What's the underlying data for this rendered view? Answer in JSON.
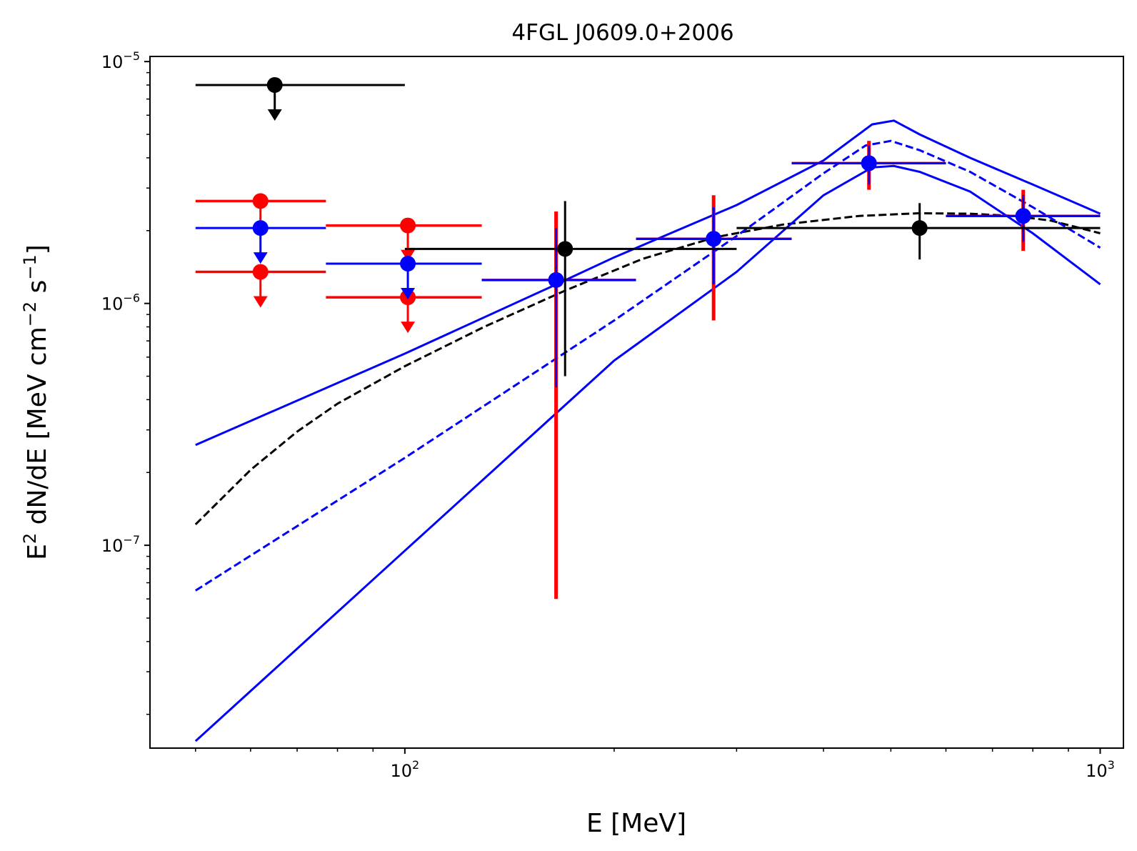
{
  "chart_data": {
    "type": "scatter",
    "title": "4FGL J0609.0+2006",
    "xlabel": "E [MeV]",
    "ylabel": {
      "prefix": "E",
      "prefix_sup": "2",
      "main": " dN/dE [MeV cm",
      "sup1": "−2",
      "mid": " s",
      "sup2": "−1",
      "suffix": "]"
    },
    "xscale": "log",
    "yscale": "log",
    "xlim": [
      43,
      1080
    ],
    "ylim": [
      1.45e-08,
      1.05e-05
    ],
    "x_ticks": [
      {
        "value": 100,
        "base": "10",
        "exp": "2"
      },
      {
        "value": 1000,
        "base": "10",
        "exp": "3"
      }
    ],
    "y_ticks": [
      {
        "value": 1e-07,
        "base": "10",
        "exp": "−7"
      },
      {
        "value": 1e-06,
        "base": "10",
        "exp": "−6"
      },
      {
        "value": 1e-05,
        "base": "10",
        "exp": "−5"
      }
    ],
    "colors": {
      "black": "#000000",
      "red": "#ff0000",
      "blue": "#0000ff"
    },
    "lines": [
      {
        "name": "black-model-dashed",
        "color": "#000000",
        "dash": true,
        "x": [
          50,
          60,
          70,
          80,
          100,
          130,
          170,
          220,
          280,
          350,
          450,
          550,
          650,
          750,
          850,
          1000
        ],
        "y": [
          1.22e-07,
          2.05e-07,
          2.95e-07,
          3.85e-07,
          5.5e-07,
          8e-07,
          1.13e-06,
          1.53e-06,
          1.88e-06,
          2.12e-06,
          2.3e-06,
          2.36e-06,
          2.35e-06,
          2.3e-06,
          2.2e-06,
          1.95e-06
        ]
      },
      {
        "name": "blue-model-dashed",
        "color": "#0000ff",
        "dash": true,
        "x": [
          50,
          100,
          200,
          300,
          400,
          460,
          500,
          550,
          650,
          800,
          1000
        ],
        "y": [
          6.5e-08,
          2.3e-07,
          8.5e-07,
          1.9e-06,
          3.45e-06,
          4.5e-06,
          4.7e-06,
          4.3e-06,
          3.5e-06,
          2.5e-06,
          1.7e-06
        ]
      },
      {
        "name": "blue-band-upper",
        "color": "#0000ff",
        "dash": false,
        "x": [
          50,
          100,
          160,
          200,
          300,
          400,
          470,
          505,
          550,
          650,
          800,
          1000
        ],
        "y": [
          2.6e-07,
          6.2e-07,
          1.15e-06,
          1.55e-06,
          2.55e-06,
          3.9e-06,
          5.5e-06,
          5.7e-06,
          5e-06,
          4e-06,
          3.1e-06,
          2.35e-06
        ]
      },
      {
        "name": "blue-band-lower",
        "color": "#0000ff",
        "dash": false,
        "x": [
          50,
          100,
          200,
          300,
          400,
          470,
          505,
          550,
          650,
          800,
          1000
        ],
        "y": [
          1.55e-08,
          9.5e-08,
          5.8e-07,
          1.35e-06,
          2.8e-06,
          3.65e-06,
          3.7e-06,
          3.5e-06,
          2.9e-06,
          1.95e-06,
          1.2e-06
        ]
      }
    ],
    "points": [
      {
        "series": "black",
        "x": 65,
        "y": 8e-06,
        "xerr": [
          50,
          100
        ],
        "ul": true
      },
      {
        "series": "black",
        "x": 170,
        "y": 1.68e-06,
        "xerr": [
          100,
          300
        ],
        "yerr": [
          5e-07,
          2.65e-06
        ]
      },
      {
        "series": "black",
        "x": 550,
        "y": 2.05e-06,
        "xerr": [
          300,
          1000
        ],
        "yerr": [
          1.52e-06,
          2.6e-06
        ]
      },
      {
        "series": "red",
        "x": 62,
        "y": 2.65e-06,
        "xerr": [
          50,
          77
        ],
        "ul": true
      },
      {
        "series": "red",
        "x": 62,
        "y": 1.35e-06,
        "xerr": [
          50,
          77
        ],
        "ul": true
      },
      {
        "series": "red",
        "x": 101,
        "y": 2.1e-06,
        "xerr": [
          77,
          129
        ],
        "ul": true
      },
      {
        "series": "red",
        "x": 101,
        "y": 1.06e-06,
        "xerr": [
          77,
          129
        ],
        "ul": true
      },
      {
        "series": "red",
        "x": 165,
        "y": 1.25e-06,
        "xerr": [
          129,
          215
        ],
        "yerr": [
          6e-08,
          2.4e-06
        ]
      },
      {
        "series": "red",
        "x": 278,
        "y": 1.85e-06,
        "xerr": [
          215,
          360
        ],
        "yerr": [
          8.5e-07,
          2.8e-06
        ]
      },
      {
        "series": "red",
        "x": 465,
        "y": 3.8e-06,
        "xerr": [
          360,
          600
        ],
        "yerr": [
          2.95e-06,
          4.7e-06
        ]
      },
      {
        "series": "red",
        "x": 775,
        "y": 2.3e-06,
        "xerr": [
          600,
          1000
        ],
        "yerr": [
          1.65e-06,
          2.95e-06
        ]
      },
      {
        "series": "blue",
        "x": 62,
        "y": 2.05e-06,
        "xerr": [
          50,
          77
        ],
        "ul": true
      },
      {
        "series": "blue",
        "x": 101,
        "y": 1.46e-06,
        "xerr": [
          77,
          129
        ],
        "ul": true
      },
      {
        "series": "blue",
        "x": 165,
        "y": 1.25e-06,
        "xerr": [
          129,
          215
        ],
        "yerr": [
          4.5e-07,
          2.05e-06
        ]
      },
      {
        "series": "blue",
        "x": 278,
        "y": 1.85e-06,
        "xerr": [
          215,
          360
        ],
        "yerr": [
          1.2e-06,
          2.5e-06
        ]
      },
      {
        "series": "blue",
        "x": 465,
        "y": 3.8e-06,
        "xerr": [
          360,
          600
        ],
        "yerr": [
          3.1e-06,
          4.5e-06
        ]
      },
      {
        "series": "blue",
        "x": 775,
        "y": 2.3e-06,
        "xerr": [
          600,
          1000
        ],
        "yerr": [
          1.8e-06,
          2.8e-06
        ]
      }
    ]
  }
}
